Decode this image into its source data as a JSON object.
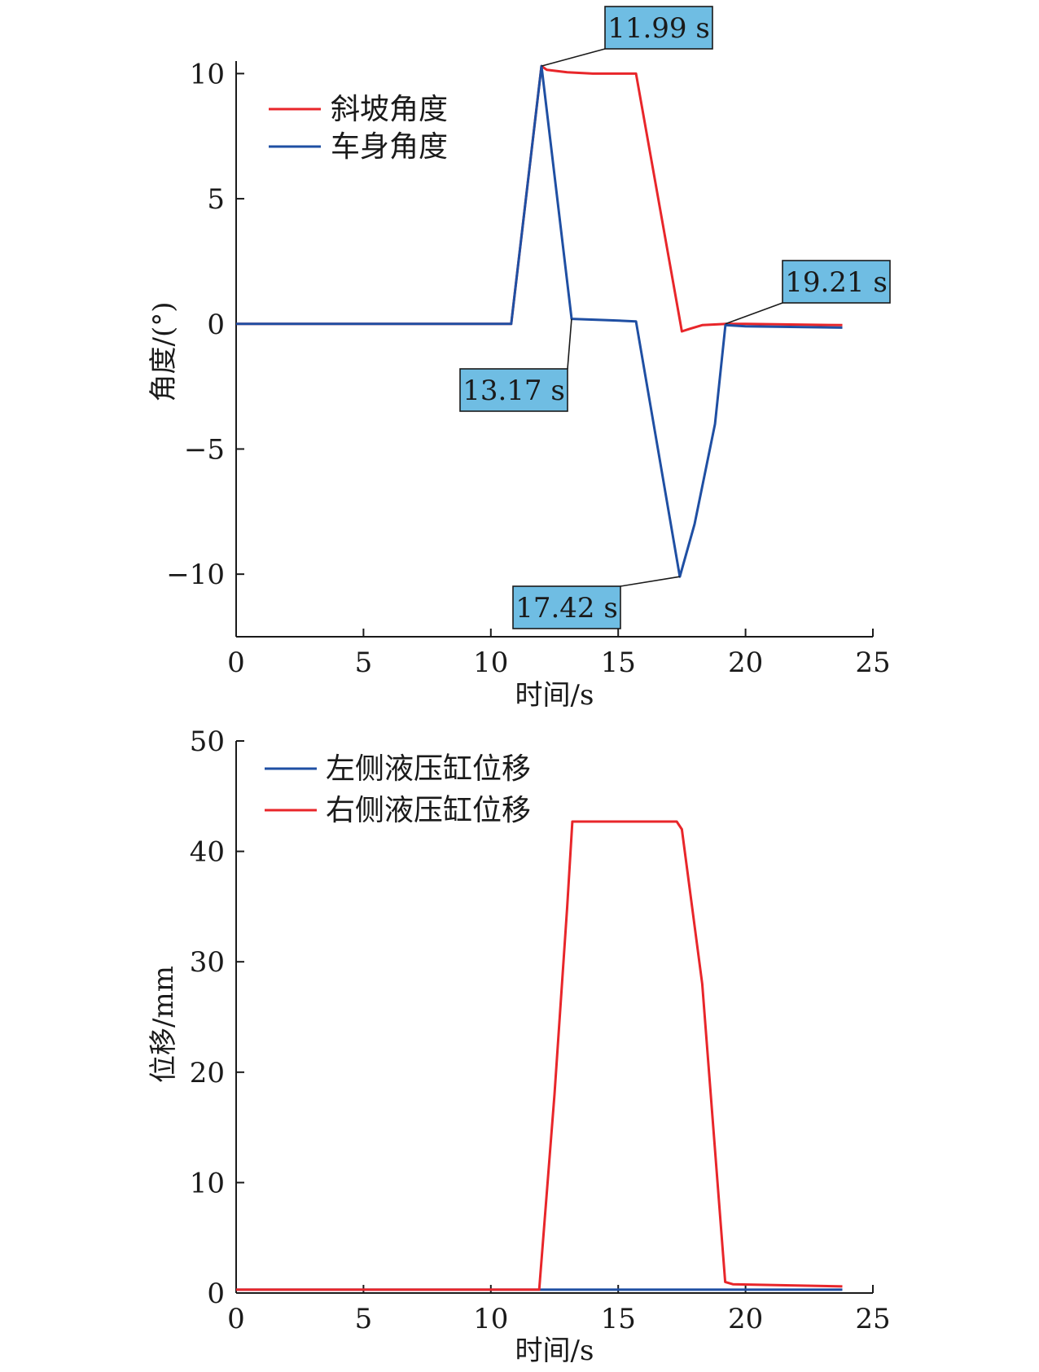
{
  "chart_data": [
    {
      "type": "line",
      "xlabel": "时间/s",
      "ylabel": "角度/(°)",
      "xlim": [
        0,
        25
      ],
      "ylim": [
        -12.5,
        10.5
      ],
      "xticks": [
        0,
        5,
        10,
        15,
        20,
        25
      ],
      "yticks": [
        -10,
        -5,
        0,
        5,
        10
      ],
      "xtick_labels": [
        "0",
        "5",
        "10",
        "15",
        "20",
        "25"
      ],
      "ytick_labels": [
        "−10",
        "−5",
        "0",
        "5",
        "10"
      ],
      "legend_position": "top-left",
      "grid": false,
      "series": [
        {
          "name": "斜坡角度",
          "color": "#e8262a",
          "x": [
            0,
            10.8,
            11.99,
            12.2,
            13.0,
            14.0,
            15.7,
            17.5,
            17.8,
            18.3,
            19.21,
            20.0,
            23.8
          ],
          "y": [
            0,
            0,
            10.3,
            10.15,
            10.05,
            10.0,
            10.0,
            -0.3,
            -0.2,
            -0.05,
            0,
            0,
            -0.05
          ]
        },
        {
          "name": "车身角度",
          "color": "#1f4fa3",
          "x": [
            0,
            10.8,
            11.99,
            13.17,
            14.5,
            15.7,
            17.42,
            18.0,
            18.8,
            19.21,
            20.0,
            23.8
          ],
          "y": [
            0,
            0,
            10.3,
            0.2,
            0.15,
            0.1,
            -10.1,
            -8.0,
            -4.0,
            -0.05,
            -0.1,
            -0.15
          ]
        }
      ],
      "annotations": [
        {
          "label": "11.99 s",
          "x": 11.99,
          "y": 10.3
        },
        {
          "label": "13.17 s",
          "x": 13.17,
          "y": 0.2
        },
        {
          "label": "17.42 s",
          "x": 17.42,
          "y": -10.1
        },
        {
          "label": "19.21 s",
          "x": 19.21,
          "y": 0.0
        }
      ]
    },
    {
      "type": "line",
      "xlabel": "时间/s",
      "ylabel": "位移/mm",
      "xlim": [
        0,
        25
      ],
      "ylim": [
        0,
        50
      ],
      "xticks": [
        0,
        5,
        10,
        15,
        20,
        25
      ],
      "yticks": [
        0,
        10,
        20,
        30,
        40,
        50
      ],
      "xtick_labels": [
        "0",
        "5",
        "10",
        "15",
        "20",
        "25"
      ],
      "ytick_labels": [
        "0",
        "10",
        "20",
        "30",
        "40",
        "50"
      ],
      "legend_position": "top-left",
      "grid": false,
      "series": [
        {
          "name": "左侧液压缸位移",
          "color": "#1f4fa3",
          "x": [
            0,
            23.8
          ],
          "y": [
            0.3,
            0.3
          ]
        },
        {
          "name": "右侧液压缸位移",
          "color": "#e8262a",
          "x": [
            0,
            11.9,
            12.5,
            13.0,
            13.2,
            14.5,
            17.3,
            17.5,
            18.3,
            19.2,
            19.5,
            23.8
          ],
          "y": [
            0.3,
            0.3,
            18,
            35,
            42.7,
            42.7,
            42.7,
            42.0,
            28,
            1.0,
            0.8,
            0.6
          ]
        }
      ]
    }
  ]
}
